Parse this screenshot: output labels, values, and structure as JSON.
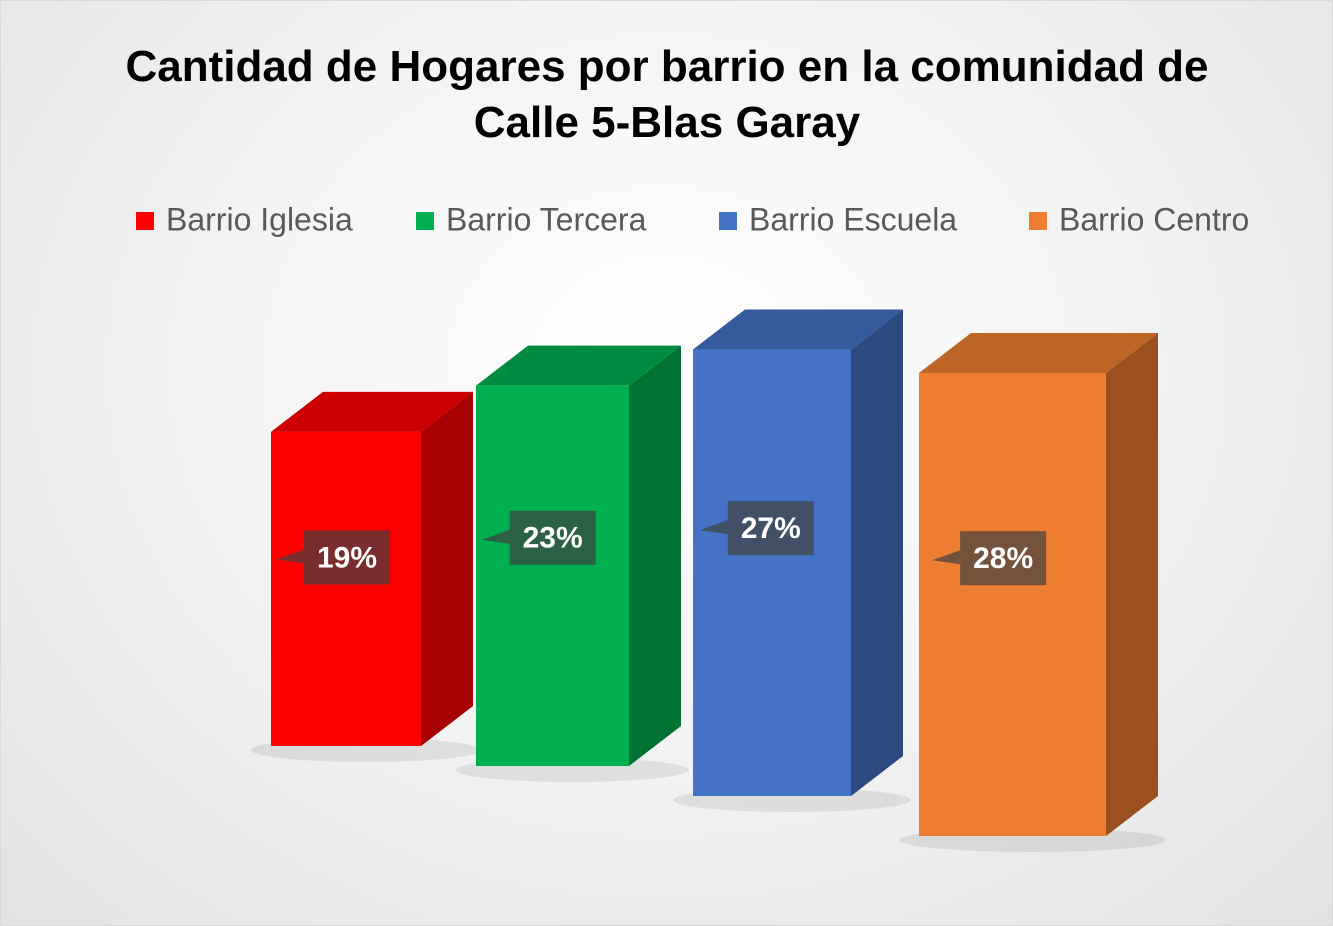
{
  "chart_data": {
    "type": "bar3d",
    "title": "Cantidad de Hogares por barrio en la comunidad de Calle 5-Blas Garay",
    "series": [
      {
        "name": "Barrio Iglesia",
        "color": "#ff0000",
        "values": [
          19
        ],
        "value_labels": [
          "19%"
        ]
      },
      {
        "name": "Barrio Tercera",
        "color": "#00b050",
        "values": [
          23
        ],
        "value_labels": [
          "23%"
        ]
      },
      {
        "name": "Barrio Escuela",
        "color": "#4472c4",
        "values": [
          27
        ],
        "value_labels": [
          "27%"
        ]
      },
      {
        "name": "Barrio Centro",
        "color": "#ed7d31",
        "values": [
          28
        ],
        "value_labels": [
          "28%"
        ]
      }
    ]
  }
}
